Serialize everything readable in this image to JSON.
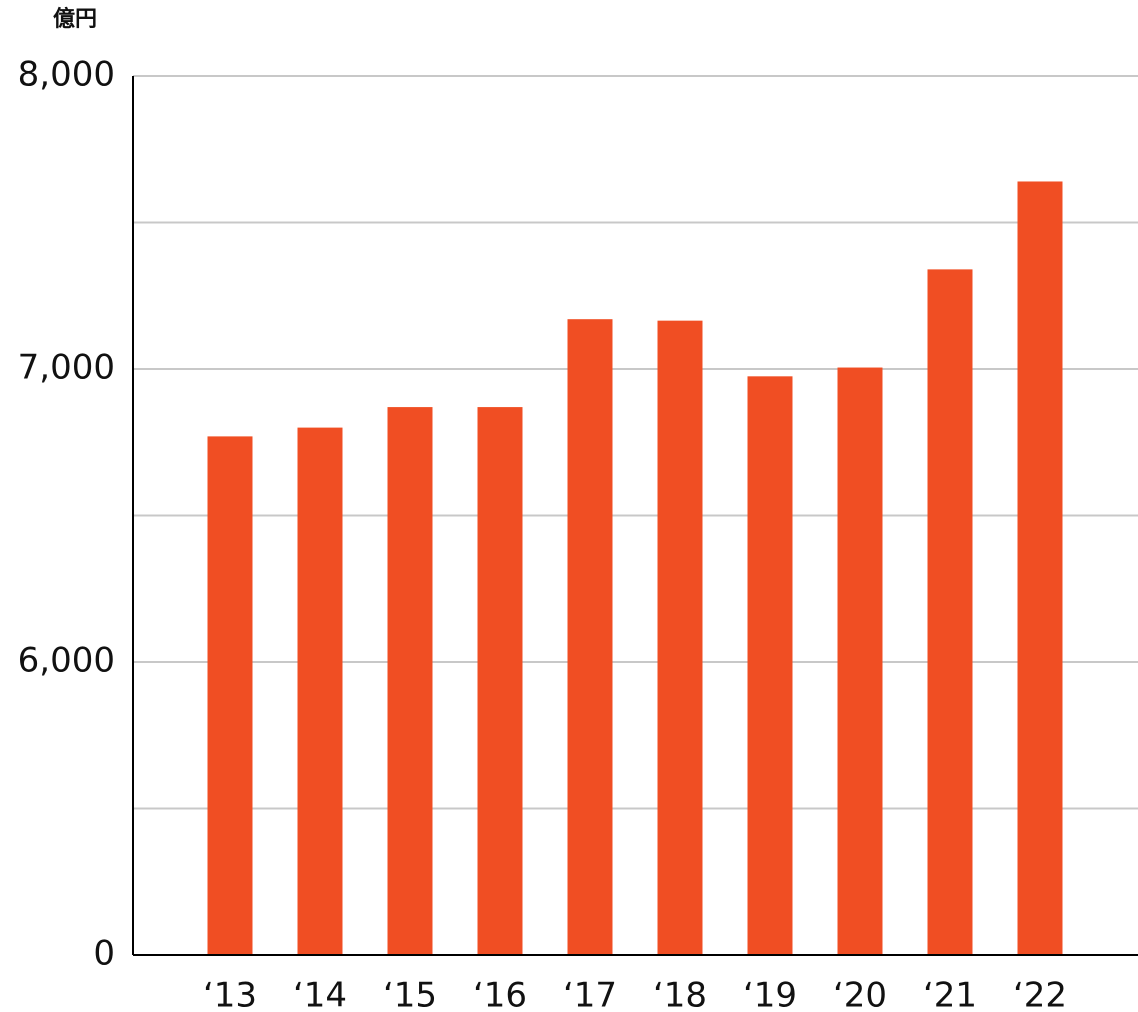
{
  "chart_data": {
    "type": "bar",
    "unit_label": "億円",
    "categories": [
      "‘13",
      "‘14",
      "‘15",
      "‘16",
      "‘17",
      "‘18",
      "‘19",
      "‘20",
      "‘21",
      "‘22"
    ],
    "values": [
      6770,
      6800,
      6870,
      6870,
      7170,
      7165,
      6975,
      7005,
      7340,
      7640
    ],
    "color": "#f04e23",
    "ylim": [
      0,
      8000
    ],
    "axis_break": [
      0,
      5000
    ],
    "yticks": [
      0,
      {
        "value": 6000,
        "label": "6,000"
      },
      {
        "value": 7000,
        "label": "7,000"
      },
      {
        "value": 8000,
        "label": "8,000"
      }
    ],
    "minor_yticks": [
      5500,
      6500,
      7500
    ],
    "grid": true
  }
}
